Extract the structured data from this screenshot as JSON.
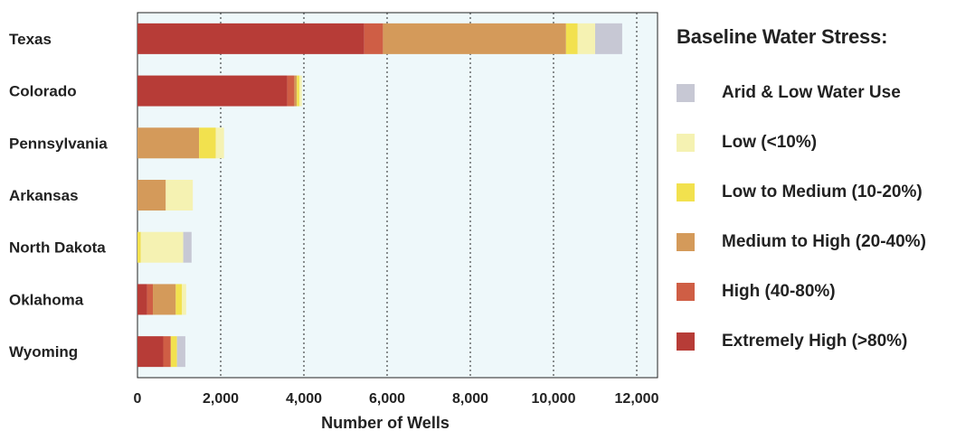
{
  "chart_data": {
    "type": "bar",
    "orientation": "horizontal",
    "stacked": true,
    "categories": [
      "Texas",
      "Colorado",
      "Pennsylvania",
      "Arkansas",
      "North Dakota",
      "Oklahoma",
      "Wyoming"
    ],
    "xlabel": "Number of Wells",
    "xlim": [
      0,
      12500
    ],
    "x_ticks": [
      0,
      2000,
      4000,
      6000,
      8000,
      10000,
      12000
    ],
    "x_tick_labels": [
      "0",
      "2,000",
      "4,000",
      "6,000",
      "8,000",
      "10,000",
      "12,000"
    ],
    "grid": "vertical dotted",
    "series": [
      {
        "name": "Extremely High (>80%)",
        "color": "#b73c37",
        "values": [
          5450,
          3600,
          0,
          0,
          0,
          230,
          620
        ]
      },
      {
        "name": "High (40-80%)",
        "color": "#cf5e45",
        "values": [
          450,
          170,
          0,
          0,
          0,
          140,
          180
        ]
      },
      {
        "name": "Medium to High (20-40%)",
        "color": "#d49a5a",
        "values": [
          4400,
          60,
          1480,
          680,
          0,
          550,
          0
        ]
      },
      {
        "name": "Low to Medium (10-20%)",
        "color": "#f2e14e",
        "values": [
          280,
          60,
          400,
          0,
          80,
          150,
          150
        ]
      },
      {
        "name": "Low (<10%)",
        "color": "#f5f2b2",
        "values": [
          420,
          60,
          200,
          650,
          1020,
          100,
          0
        ]
      },
      {
        "name": "Arid & Low Water Use",
        "color": "#c7c8d4",
        "values": [
          650,
          0,
          0,
          0,
          200,
          0,
          200
        ]
      }
    ]
  },
  "legend": {
    "title": "Baseline Water Stress:",
    "items": [
      {
        "label": "Arid & Low Water Use",
        "color": "#c7c8d4"
      },
      {
        "label": "Low (<10%)",
        "color": "#f5f2b2"
      },
      {
        "label": "Low to Medium (10-20%)",
        "color": "#f2e14e"
      },
      {
        "label": "Medium to High (20-40%)",
        "color": "#d49a5a"
      },
      {
        "label": "High (40-80%)",
        "color": "#cf5e45"
      },
      {
        "label": "Extremely High (>80%)",
        "color": "#b73c37"
      }
    ]
  },
  "colors": {
    "plot_background": "#eef8fa",
    "grid": "#222222",
    "text": "#222222"
  }
}
